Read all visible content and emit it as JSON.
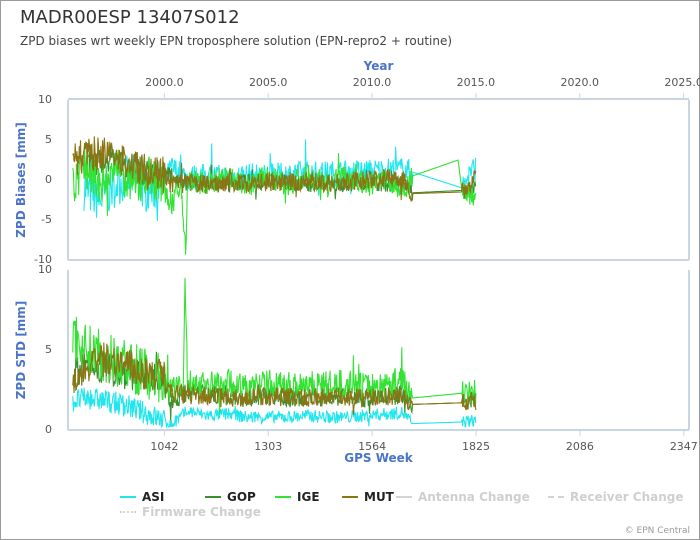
{
  "header": {
    "title": "MADR00ESP 13407S012",
    "subtitle": "ZPD biases wrt weekly EPN troposphere solution (EPN-repro2 + routine)"
  },
  "credit": "© EPN Central",
  "chart_data": {
    "type": "line",
    "top_axis": {
      "label": "Year",
      "ticks": [
        "2000.0",
        "2005.0",
        "2010.0",
        "2015.0",
        "2020.0",
        "2025.0"
      ],
      "tick_values": [
        2000,
        2005,
        2010,
        2015,
        2020,
        2025
      ]
    },
    "bottom_axis": {
      "label": "GPS Week",
      "ticks": [
        "1042",
        "1303",
        "1564",
        "1825",
        "2086",
        "2347"
      ],
      "tick_values": [
        1042,
        1303,
        1564,
        1825,
        2086,
        2347
      ],
      "range": [
        800,
        2360
      ]
    },
    "panels": [
      {
        "id": "biases",
        "ylabel": "ZPD Biases [mm]",
        "ylim": [
          -10,
          10
        ],
        "yticks": [
          "10",
          "5",
          "0",
          "-5",
          "-10"
        ]
      },
      {
        "id": "std",
        "ylabel": "ZPD STD [mm]",
        "ylim": [
          0,
          10
        ],
        "yticks": [
          "10",
          "5",
          "0"
        ]
      }
    ],
    "series": [
      {
        "name": "ASI",
        "color": "#22e6ee",
        "bias": [
          [
            840,
            -1.0
          ],
          [
            880,
            -2.5
          ],
          [
            920,
            -0.5
          ],
          [
            960,
            0.5
          ],
          [
            1000,
            -1.5
          ],
          [
            1040,
            -0.5
          ],
          [
            1060,
            1.5
          ],
          [
            1100,
            0.3
          ],
          [
            1150,
            0.5
          ],
          [
            1200,
            0.3
          ],
          [
            1250,
            0.6
          ],
          [
            1300,
            0.4
          ],
          [
            1350,
            0.7
          ],
          [
            1400,
            0.8
          ],
          [
            1450,
            0.8
          ],
          [
            1500,
            1.0
          ],
          [
            1550,
            1.0
          ],
          [
            1600,
            1.2
          ],
          [
            1640,
            1.3
          ],
          [
            1665,
            1.0
          ],
          [
            1790,
            -1.0
          ],
          [
            1810,
            1.0
          ],
          [
            1825,
            1.5
          ]
        ],
        "std": [
          [
            812,
            1.8
          ],
          [
            850,
            2.0
          ],
          [
            900,
            1.8
          ],
          [
            950,
            1.5
          ],
          [
            1000,
            1.0
          ],
          [
            1040,
            0.6
          ],
          [
            1060,
            0.3
          ],
          [
            1100,
            1.2
          ],
          [
            1150,
            0.9
          ],
          [
            1200,
            1.0
          ],
          [
            1250,
            0.8
          ],
          [
            1300,
            0.8
          ],
          [
            1350,
            0.8
          ],
          [
            1400,
            0.9
          ],
          [
            1450,
            0.8
          ],
          [
            1500,
            0.8
          ],
          [
            1550,
            0.9
          ],
          [
            1600,
            1.0
          ],
          [
            1640,
            1.1
          ],
          [
            1665,
            0.4
          ],
          [
            1790,
            0.5
          ],
          [
            1825,
            0.6
          ]
        ]
      },
      {
        "name": "GOP",
        "color": "#3c8f2f",
        "bias": [
          [
            840,
            1.5
          ],
          [
            880,
            2.0
          ],
          [
            920,
            3.0
          ],
          [
            960,
            1.5
          ],
          [
            1000,
            0.8
          ],
          [
            1040,
            1.0
          ],
          [
            1060,
            0.5
          ],
          [
            1100,
            -0.4
          ],
          [
            1150,
            -0.3
          ],
          [
            1200,
            -0.6
          ],
          [
            1250,
            -0.2
          ],
          [
            1300,
            -0.5
          ],
          [
            1350,
            -0.3
          ],
          [
            1400,
            -0.6
          ],
          [
            1450,
            -0.2
          ],
          [
            1500,
            -0.5
          ],
          [
            1550,
            -0.3
          ],
          [
            1600,
            -0.6
          ],
          [
            1640,
            -0.4
          ],
          [
            1665,
            -1.6
          ],
          [
            1790,
            -1.3
          ],
          [
            1825,
            -0.8
          ]
        ],
        "std": [
          [
            812,
            3.5
          ],
          [
            850,
            4.0
          ],
          [
            900,
            3.8
          ],
          [
            950,
            3.6
          ],
          [
            1000,
            3.3
          ],
          [
            1040,
            3.0
          ],
          [
            1060,
            1.8
          ],
          [
            1100,
            2.4
          ],
          [
            1150,
            2.3
          ],
          [
            1200,
            2.2
          ],
          [
            1250,
            2.0
          ],
          [
            1300,
            2.2
          ],
          [
            1350,
            2.0
          ],
          [
            1400,
            2.1
          ],
          [
            1450,
            2.0
          ],
          [
            1500,
            2.1
          ],
          [
            1550,
            2.0
          ],
          [
            1600,
            2.1
          ],
          [
            1640,
            2.2
          ],
          [
            1665,
            1.6
          ],
          [
            1790,
            1.7
          ],
          [
            1825,
            1.9
          ]
        ]
      },
      {
        "name": "IGE",
        "color": "#33e233",
        "bias": [
          [
            812,
            -1.0
          ],
          [
            840,
            2.0
          ],
          [
            880,
            -1.0
          ],
          [
            920,
            1.5
          ],
          [
            960,
            -0.5
          ],
          [
            1000,
            1.0
          ],
          [
            1040,
            -1.0
          ],
          [
            1060,
            -3.0
          ],
          [
            1084,
            -1.0
          ],
          [
            1096,
            -9.0
          ],
          [
            1100,
            0.0
          ],
          [
            1150,
            -0.5
          ],
          [
            1200,
            0.3
          ],
          [
            1250,
            -0.8
          ],
          [
            1300,
            0.4
          ],
          [
            1350,
            -0.6
          ],
          [
            1400,
            0.6
          ],
          [
            1450,
            -0.4
          ],
          [
            1500,
            0.5
          ],
          [
            1550,
            -0.7
          ],
          [
            1600,
            0.3
          ],
          [
            1640,
            -1.5
          ],
          [
            1665,
            0.5
          ],
          [
            1780,
            2.5
          ],
          [
            1790,
            -1.5
          ],
          [
            1825,
            -2.0
          ]
        ],
        "std": [
          [
            812,
            6.0
          ],
          [
            850,
            5.0
          ],
          [
            900,
            4.5
          ],
          [
            950,
            4.0
          ],
          [
            1000,
            3.5
          ],
          [
            1040,
            3.2
          ],
          [
            1060,
            2.5
          ],
          [
            1090,
            2.5
          ],
          [
            1094,
            10.0
          ],
          [
            1100,
            3.0
          ],
          [
            1150,
            2.8
          ],
          [
            1200,
            3.0
          ],
          [
            1250,
            2.6
          ],
          [
            1300,
            2.9
          ],
          [
            1350,
            2.7
          ],
          [
            1400,
            3.0
          ],
          [
            1450,
            2.8
          ],
          [
            1500,
            2.9
          ],
          [
            1550,
            2.7
          ],
          [
            1600,
            2.8
          ],
          [
            1640,
            3.2
          ],
          [
            1665,
            2.0
          ],
          [
            1790,
            2.3
          ],
          [
            1825,
            2.4
          ]
        ]
      },
      {
        "name": "MUT",
        "color": "#8b7413",
        "bias": [
          [
            812,
            2.5
          ],
          [
            840,
            3.0
          ],
          [
            880,
            3.5
          ],
          [
            920,
            2.5
          ],
          [
            960,
            2.0
          ],
          [
            1000,
            1.0
          ],
          [
            1040,
            0.5
          ],
          [
            1060,
            -0.5
          ],
          [
            1100,
            -0.3
          ],
          [
            1150,
            -0.6
          ],
          [
            1200,
            -0.2
          ],
          [
            1250,
            -0.5
          ],
          [
            1300,
            -0.2
          ],
          [
            1350,
            -0.4
          ],
          [
            1400,
            -0.1
          ],
          [
            1450,
            -0.3
          ],
          [
            1500,
            -0.2
          ],
          [
            1550,
            0.0
          ],
          [
            1600,
            0.2
          ],
          [
            1640,
            0.3
          ],
          [
            1665,
            -1.7
          ],
          [
            1790,
            -1.5
          ],
          [
            1825,
            0.4
          ]
        ],
        "std": [
          [
            812,
            3.2
          ],
          [
            850,
            4.0
          ],
          [
            900,
            4.5
          ],
          [
            950,
            4.0
          ],
          [
            1000,
            3.5
          ],
          [
            1040,
            3.3
          ],
          [
            1060,
            2.3
          ],
          [
            1100,
            2.2
          ],
          [
            1150,
            2.1
          ],
          [
            1200,
            2.0
          ],
          [
            1250,
            2.0
          ],
          [
            1300,
            2.1
          ],
          [
            1350,
            2.1
          ],
          [
            1400,
            2.0
          ],
          [
            1450,
            2.1
          ],
          [
            1500,
            2.0
          ],
          [
            1550,
            2.0
          ],
          [
            1600,
            2.1
          ],
          [
            1640,
            2.1
          ],
          [
            1665,
            1.6
          ],
          [
            1790,
            1.7
          ],
          [
            1825,
            1.8
          ]
        ]
      }
    ],
    "legend": [
      {
        "label": "ASI",
        "color": "#22e6ee",
        "style": "solid",
        "active": true
      },
      {
        "label": "GOP",
        "color": "#3c8f2f",
        "style": "solid",
        "active": true
      },
      {
        "label": "IGE",
        "color": "#33e233",
        "style": "solid",
        "active": true
      },
      {
        "label": "MUT",
        "color": "#8b7413",
        "style": "solid",
        "active": true
      },
      {
        "label": "Antenna Change",
        "color": "#d4d4d4",
        "style": "solid",
        "active": false
      },
      {
        "label": "Receiver Change",
        "color": "#d4d4d4",
        "style": "dashed",
        "active": false
      },
      {
        "label": "Firmware Change",
        "color": "#d4d4d4",
        "style": "dotted",
        "active": false
      }
    ],
    "legend_position": "bottom"
  }
}
